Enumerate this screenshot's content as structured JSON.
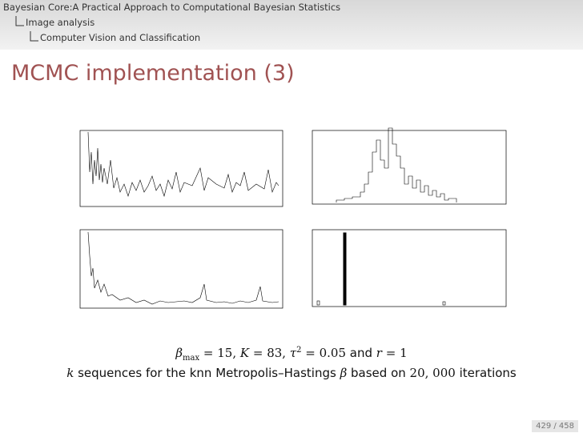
{
  "header": {
    "section": "Bayesian Core:A Practical Approach to Computational Bayesian Statistics",
    "subsection": "Image analysis",
    "subsubsection": "Computer Vision and Classification"
  },
  "title": "MCMC implementation (3)",
  "caption": {
    "line1": [
      "β",
      "max",
      " = 15, ",
      "K",
      " = 83, ",
      "τ",
      "2",
      " = 0.05",
      " and ",
      "r",
      " = 1"
    ],
    "line2": [
      "k",
      " sequences for the knn Metropolis–Hastings ",
      "β",
      " based on ",
      "20, 000",
      " iterations"
    ]
  },
  "page": "429 / 458"
}
